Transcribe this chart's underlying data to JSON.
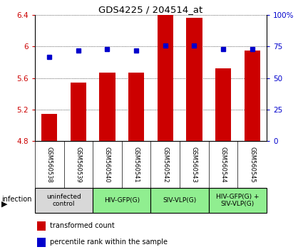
{
  "title": "GDS4225 / 204514_at",
  "samples": [
    "GSM560538",
    "GSM560539",
    "GSM560540",
    "GSM560541",
    "GSM560542",
    "GSM560543",
    "GSM560544",
    "GSM560545"
  ],
  "bar_values": [
    5.15,
    5.54,
    5.67,
    5.67,
    6.4,
    6.37,
    5.72,
    5.95
  ],
  "percentile_values": [
    67,
    72,
    73,
    72,
    76,
    76,
    73,
    73
  ],
  "ylim_left": [
    4.8,
    6.4
  ],
  "ylim_right": [
    0,
    100
  ],
  "yticks_left": [
    4.8,
    5.2,
    5.6,
    6.0,
    6.4
  ],
  "yticks_right": [
    0,
    25,
    50,
    75,
    100
  ],
  "ytick_labels_left": [
    "4.8",
    "5.2",
    "5.6",
    "6",
    "6.4"
  ],
  "ytick_labels_right": [
    "0",
    "25",
    "50",
    "75",
    "100%"
  ],
  "bar_color": "#cc0000",
  "dot_color": "#0000cc",
  "background_color": "#ffffff",
  "groups": [
    {
      "label": "uninfected\ncontrol",
      "start": 0,
      "end": 2,
      "color": "#d8d8d8"
    },
    {
      "label": "HIV-GFP(G)",
      "start": 2,
      "end": 4,
      "color": "#90ee90"
    },
    {
      "label": "SIV-VLP(G)",
      "start": 4,
      "end": 6,
      "color": "#90ee90"
    },
    {
      "label": "HIV-GFP(G) +\nSIV-VLP(G)",
      "start": 6,
      "end": 8,
      "color": "#90ee90"
    }
  ],
  "sample_bg_color": "#c8c8c8",
  "infection_label": "infection",
  "legend_bar_label": "transformed count",
  "legend_dot_label": "percentile rank within the sample"
}
